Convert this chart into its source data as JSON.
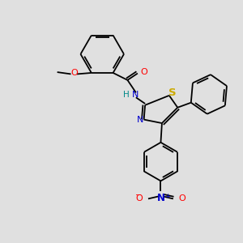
{
  "background_color": "#e0e0e0",
  "bond_color": "#000000",
  "atom_colors": {
    "N": "#0000cc",
    "O": "#ff0000",
    "S": "#ccaa00",
    "H": "#008888",
    "C": "#000000"
  },
  "lw": 1.3,
  "fs": 8.0
}
